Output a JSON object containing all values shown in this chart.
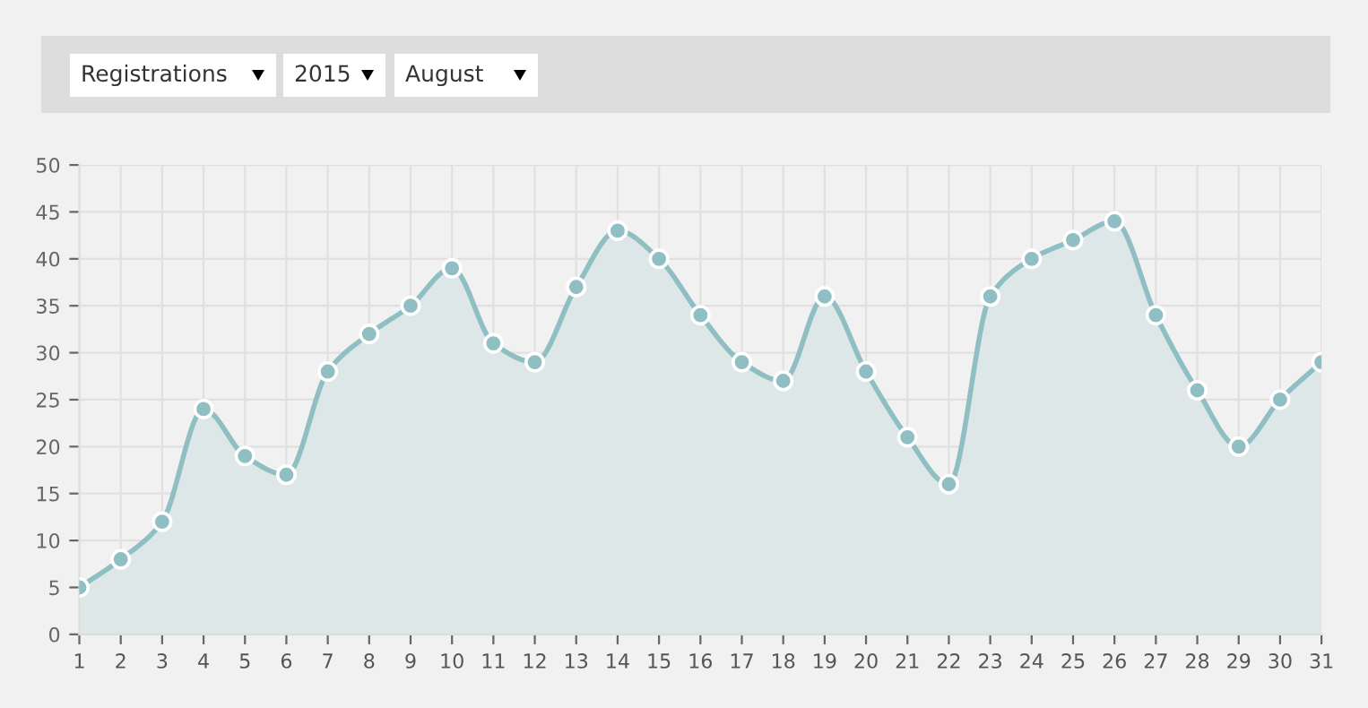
{
  "chart_data": {
    "type": "area",
    "x": [
      1,
      2,
      3,
      4,
      5,
      6,
      7,
      8,
      9,
      10,
      11,
      12,
      13,
      14,
      15,
      16,
      17,
      18,
      19,
      20,
      21,
      22,
      23,
      24,
      25,
      26,
      27,
      28,
      29,
      30,
      31
    ],
    "series": [
      {
        "color": "#8fbfc2",
        "values": [
          5,
          8,
          12,
          24,
          19,
          17,
          28,
          32,
          35,
          39,
          31,
          29,
          37,
          43,
          40,
          34,
          29,
          27,
          36,
          28,
          21,
          16,
          36,
          40,
          42,
          44,
          34,
          26,
          20,
          25,
          29
        ]
      }
    ],
    "xlim": [
      1,
      31
    ],
    "xticks": [
      1,
      2,
      3,
      4,
      5,
      6,
      7,
      8,
      9,
      10,
      11,
      12,
      13,
      14,
      15,
      16,
      17,
      18,
      19,
      20,
      21,
      22,
      23,
      24,
      25,
      26,
      27,
      28,
      29,
      30,
      31
    ],
    "ylim": [
      0,
      50
    ],
    "yticks": [
      0,
      5,
      10,
      15,
      20,
      25,
      30,
      35,
      40,
      45,
      50
    ],
    "grid": true,
    "marker": "circle",
    "line_style": "solid",
    "legend": false,
    "annotations": [
      "Registrations",
      "2015",
      "August"
    ]
  }
}
